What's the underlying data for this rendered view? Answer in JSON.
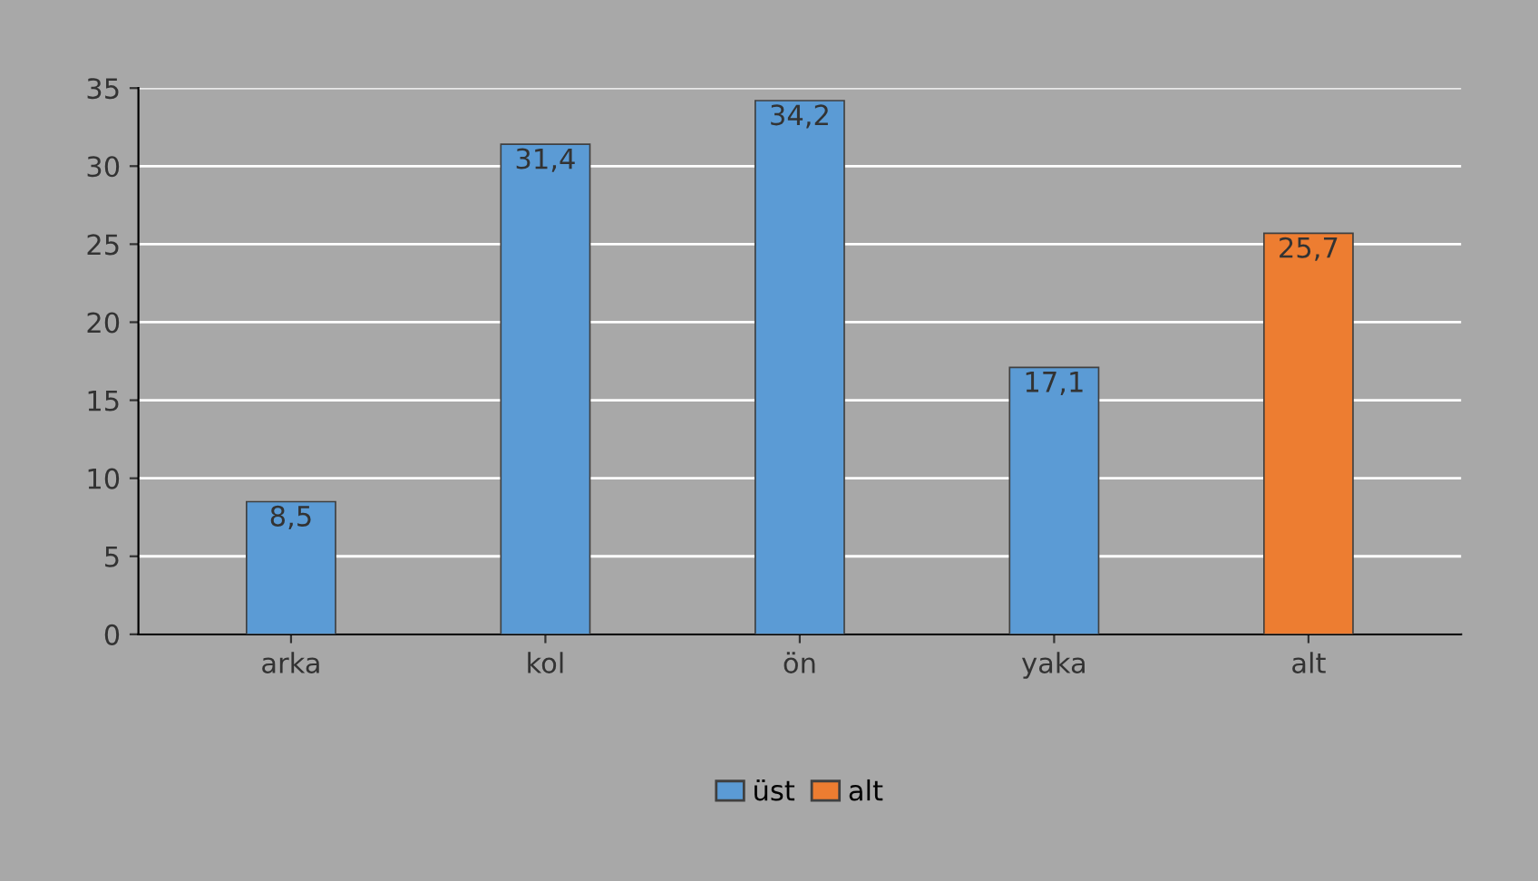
{
  "chart_data": {
    "type": "bar",
    "categories": [
      "arka",
      "kol",
      "ön",
      "yaka",
      "alt"
    ],
    "series": [
      {
        "name": "üst",
        "color": "#5b9bd5",
        "values": [
          8.5,
          31.4,
          34.2,
          17.1,
          null
        ],
        "value_labels": [
          "8,5",
          "31,4",
          "34,2",
          "17,1",
          null
        ]
      },
      {
        "name": "alt",
        "color": "#ed7d31",
        "values": [
          null,
          null,
          null,
          null,
          25.7
        ],
        "value_labels": [
          null,
          null,
          null,
          null,
          "25,7"
        ]
      }
    ],
    "ylim": [
      0,
      35
    ],
    "yticks": [
      0,
      5,
      10,
      15,
      20,
      25,
      30,
      35
    ],
    "grid": "y",
    "legend": "bottom"
  }
}
